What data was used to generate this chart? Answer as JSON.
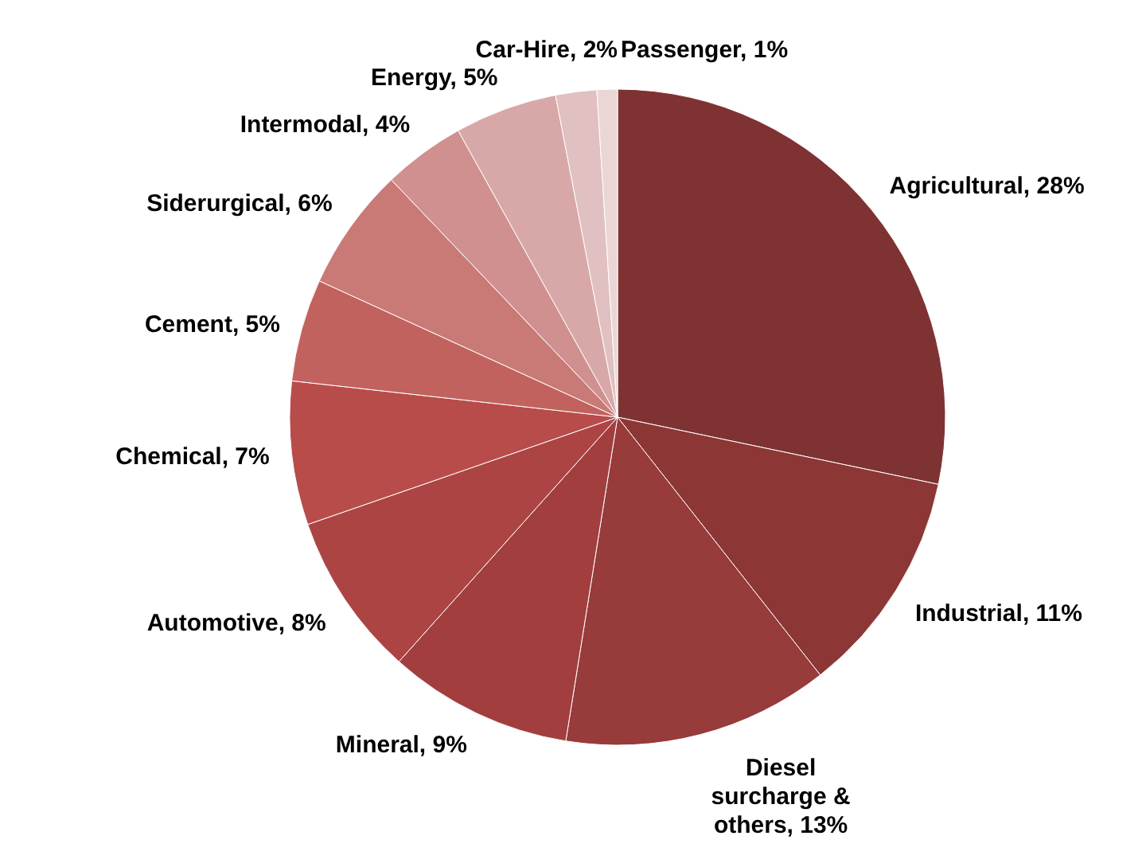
{
  "chart_data": {
    "type": "pie",
    "categories": [
      "Agricultural",
      "Industrial",
      "Diesel surcharge & others",
      "Mineral",
      "Automotive",
      "Chemical",
      "Cement",
      "Siderurgical",
      "Intermodal",
      "Energy",
      "Car-Hire",
      "Passenger"
    ],
    "values": [
      28,
      11,
      13,
      9,
      8,
      7,
      5,
      6,
      4,
      5,
      2,
      1
    ],
    "value_labels": [
      "28%",
      "11%",
      "13%",
      "9%",
      "8%",
      "7%",
      "5%",
      "6%",
      "4%",
      "5%",
      "2%",
      "1%"
    ],
    "colors": [
      "#7f3232",
      "#8c3636",
      "#973b3b",
      "#a23e3e",
      "#ad4444",
      "#b84c4a",
      "#c2625e",
      "#c97a77",
      "#d09090",
      "#d8a8a8",
      "#e0c0c0",
      "#ebd6d6"
    ]
  }
}
